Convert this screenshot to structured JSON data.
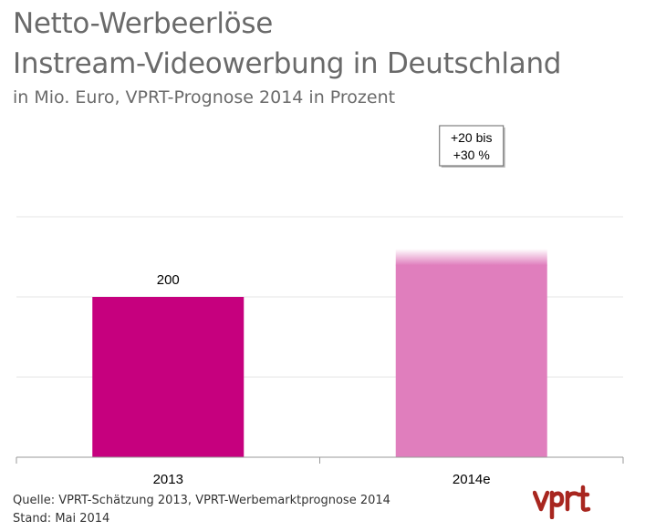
{
  "header": {
    "title_line1": "Netto-Werbeerlöse",
    "title_line2": "Instream-Videowerbung in Deutschland",
    "subtitle": "in Mio. Euro, VPRT-Prognose 2014 in Prozent"
  },
  "footer": {
    "source": "Quelle: VPRT-Schätzung 2013, VPRT-Werbemarktprognose 2014",
    "date": "Stand:  Mai 2014"
  },
  "logo": {
    "text": "vprt",
    "color": "#a8261f"
  },
  "chart_data": {
    "type": "bar",
    "categories": [
      "2013",
      "2014e"
    ],
    "values": [
      200,
      250
    ],
    "value_range_2014e": [
      240,
      260
    ],
    "data_labels": [
      "200",
      ""
    ],
    "annotation": {
      "category": "2014e",
      "line1": "+20 bis",
      "line2": "+30 %"
    },
    "ylim": [
      0,
      400
    ],
    "grid": true,
    "colors": [
      "#c6007e",
      "#e07ebd"
    ],
    "gridline_color": "#e6e6e6",
    "axis_color": "#999999"
  }
}
